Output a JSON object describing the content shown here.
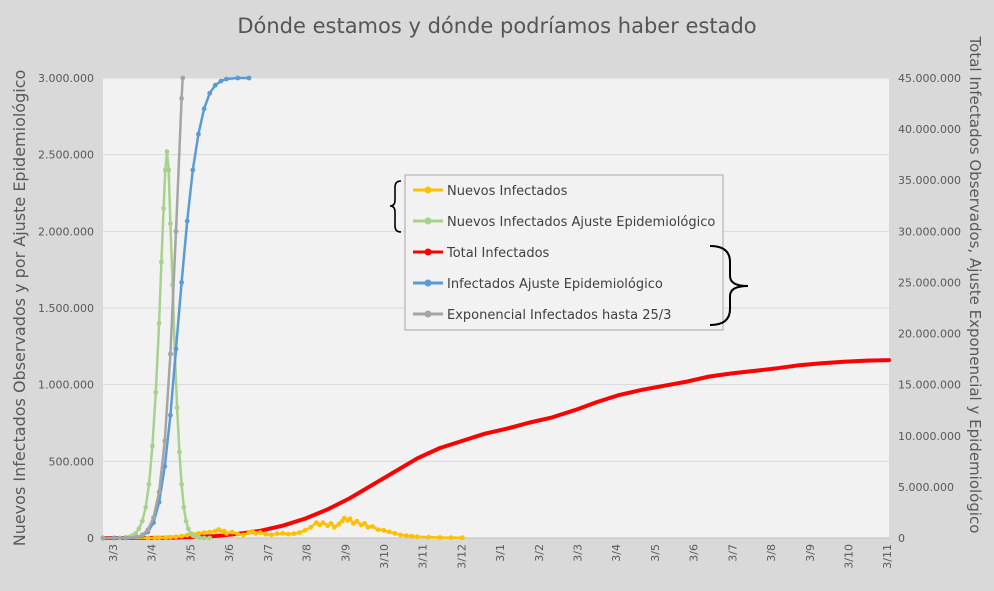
{
  "chart_data": {
    "type": "line",
    "title": "Dónde estamos y dónde podríamos haber estado",
    "ylabel_left": "Nuevos Infectados Observados y por Ajuste Epidemiológico",
    "ylabel_right": "Total Infectados Observados, Ajuste Exponencial y Epidemiológico",
    "x_tick_labels": [
      "3/3",
      "3/4",
      "3/5",
      "3/6",
      "3/7",
      "3/8",
      "3/9",
      "3/10",
      "3/11",
      "3/12",
      "3/1",
      "3/2",
      "3/3",
      "3/4",
      "3/5",
      "3/6",
      "3/7",
      "3/8",
      "3/9",
      "3/10",
      "3/11"
    ],
    "y_left": {
      "min": 0,
      "max": 3000000,
      "ticks": [
        0,
        500000,
        1000000,
        1500000,
        2000000,
        2500000,
        3000000
      ],
      "tick_labels": [
        "0",
        "500.000",
        "1.000.000",
        "1.500.000",
        "2.000.000",
        "2.500.000",
        "3.000.000"
      ]
    },
    "y_right": {
      "min": 0,
      "max": 45000000,
      "ticks": [
        0,
        5000000,
        10000000,
        15000000,
        20000000,
        25000000,
        30000000,
        35000000,
        40000000,
        45000000
      ],
      "tick_labels": [
        "0",
        "5.000.000",
        "10.000.000",
        "15.000.000",
        "20.000.000",
        "25.000.000",
        "30.000.000",
        "35.000.000",
        "40.000.000",
        "45.000.000"
      ]
    },
    "grid": "horizontal",
    "legend_position": "center",
    "series": [
      {
        "name": "Nuevos Infectados",
        "axis": "left",
        "color": "#ffc000",
        "points": [
          [
            0,
            0
          ],
          [
            2,
            0
          ],
          [
            4,
            300
          ],
          [
            4.6,
            800
          ],
          [
            5,
            2000
          ],
          [
            5.6,
            3000
          ],
          [
            6,
            5000
          ],
          [
            6.5,
            8000
          ],
          [
            7,
            12000
          ],
          [
            7.5,
            18000
          ],
          [
            8,
            25000
          ],
          [
            8.5,
            30000
          ],
          [
            9,
            35000
          ],
          [
            9.5,
            38000
          ],
          [
            10,
            45000
          ],
          [
            10.3,
            55000
          ],
          [
            10.6,
            40000
          ],
          [
            10.8,
            45000
          ],
          [
            11,
            30000
          ],
          [
            11.5,
            38000
          ],
          [
            12,
            25000
          ],
          [
            12.5,
            20000
          ],
          [
            13,
            35000
          ],
          [
            13.3,
            42000
          ],
          [
            13.6,
            30000
          ],
          [
            14,
            35000
          ],
          [
            14.5,
            25000
          ],
          [
            15,
            20000
          ],
          [
            15.5,
            28000
          ],
          [
            16,
            30000
          ],
          [
            16.5,
            25000
          ],
          [
            17,
            28000
          ],
          [
            17.5,
            35000
          ],
          [
            18,
            50000
          ],
          [
            18.5,
            70000
          ],
          [
            19,
            100000
          ],
          [
            19.3,
            85000
          ],
          [
            19.6,
            100000
          ],
          [
            20,
            80000
          ],
          [
            20.3,
            95000
          ],
          [
            20.6,
            70000
          ],
          [
            21,
            90000
          ],
          [
            21.3,
            110000
          ],
          [
            21.5,
            130000
          ],
          [
            21.8,
            115000
          ],
          [
            22,
            125000
          ],
          [
            22.3,
            95000
          ],
          [
            22.6,
            110000
          ],
          [
            23,
            85000
          ],
          [
            23.3,
            95000
          ],
          [
            23.6,
            70000
          ],
          [
            24,
            75000
          ],
          [
            24.5,
            55000
          ],
          [
            25,
            50000
          ],
          [
            25.5,
            40000
          ],
          [
            26,
            30000
          ],
          [
            26.5,
            20000
          ],
          [
            27,
            15000
          ],
          [
            27.5,
            12000
          ],
          [
            28,
            8000
          ],
          [
            29,
            5000
          ],
          [
            30,
            3000
          ],
          [
            31,
            2000
          ],
          [
            32,
            2000
          ]
        ]
      },
      {
        "name": "Nuevos Infectados Ajuste Epidemiológico",
        "axis": "left",
        "color": "#a9d18e",
        "points": [
          [
            0,
            0
          ],
          [
            1,
            0
          ],
          [
            1.5,
            500
          ],
          [
            2,
            2000
          ],
          [
            2.3,
            6000
          ],
          [
            2.6,
            15000
          ],
          [
            2.9,
            30000
          ],
          [
            3.2,
            60000
          ],
          [
            3.5,
            110000
          ],
          [
            3.8,
            200000
          ],
          [
            4.1,
            350000
          ],
          [
            4.4,
            600000
          ],
          [
            4.7,
            950000
          ],
          [
            5,
            1400000
          ],
          [
            5.2,
            1800000
          ],
          [
            5.4,
            2150000
          ],
          [
            5.55,
            2400000
          ],
          [
            5.7,
            2520000
          ],
          [
            5.85,
            2400000
          ],
          [
            6,
            2050000
          ],
          [
            6.2,
            1650000
          ],
          [
            6.4,
            1200000
          ],
          [
            6.6,
            850000
          ],
          [
            6.8,
            560000
          ],
          [
            7,
            350000
          ],
          [
            7.2,
            200000
          ],
          [
            7.4,
            110000
          ],
          [
            7.6,
            60000
          ],
          [
            7.8,
            30000
          ],
          [
            8,
            15000
          ],
          [
            8.3,
            6000
          ],
          [
            8.6,
            2000
          ],
          [
            9,
            500
          ],
          [
            9.5,
            0
          ]
        ]
      },
      {
        "name": "Total Infectados",
        "axis": "right",
        "color": "#ff0000",
        "points": [
          [
            0,
            0
          ],
          [
            4,
            0
          ],
          [
            6,
            30000
          ],
          [
            8,
            100000
          ],
          [
            10,
            200000
          ],
          [
            12,
            400000
          ],
          [
            14,
            700000
          ],
          [
            16,
            1200000
          ],
          [
            18,
            1900000
          ],
          [
            20,
            2800000
          ],
          [
            22,
            3900000
          ],
          [
            24,
            5200000
          ],
          [
            26,
            6500000
          ],
          [
            28,
            7800000
          ],
          [
            30,
            8800000
          ],
          [
            32,
            9500000
          ],
          [
            34,
            10200000
          ],
          [
            36,
            10700000
          ],
          [
            38,
            11300000
          ],
          [
            40,
            11800000
          ],
          [
            42,
            12500000
          ],
          [
            44,
            13300000
          ],
          [
            46,
            14000000
          ],
          [
            48,
            14500000
          ],
          [
            50,
            14900000
          ],
          [
            52,
            15300000
          ],
          [
            54,
            15800000
          ],
          [
            56,
            16100000
          ],
          [
            58,
            16350000
          ],
          [
            60,
            16600000
          ],
          [
            62,
            16900000
          ],
          [
            64,
            17100000
          ],
          [
            66,
            17250000
          ],
          [
            68,
            17350000
          ],
          [
            70,
            17400000
          ]
        ]
      },
      {
        "name": "Infectados Ajuste Epidemiológico",
        "axis": "right",
        "color": "#5b9bd5",
        "points": [
          [
            0,
            0
          ],
          [
            1,
            0
          ],
          [
            2,
            5000
          ],
          [
            3,
            60000
          ],
          [
            3.5,
            200000
          ],
          [
            4,
            600000
          ],
          [
            4.5,
            1500000
          ],
          [
            5,
            3500000
          ],
          [
            5.5,
            7000000
          ],
          [
            6,
            12000000
          ],
          [
            6.5,
            18500000
          ],
          [
            7,
            25000000
          ],
          [
            7.5,
            31000000
          ],
          [
            8,
            36000000
          ],
          [
            8.5,
            39500000
          ],
          [
            9,
            42000000
          ],
          [
            9.5,
            43500000
          ],
          [
            10,
            44300000
          ],
          [
            10.5,
            44700000
          ],
          [
            11,
            44900000
          ],
          [
            12,
            45000000
          ],
          [
            13,
            45000000
          ]
        ]
      },
      {
        "name": "Exponencial Infectados hasta 25/3",
        "axis": "right",
        "color": "#a5a5a5",
        "points": [
          [
            0,
            0
          ],
          [
            2,
            20000
          ],
          [
            3,
            100000
          ],
          [
            3.5,
            300000
          ],
          [
            4,
            800000
          ],
          [
            4.5,
            2000000
          ],
          [
            5,
            4500000
          ],
          [
            5.5,
            9500000
          ],
          [
            6,
            18000000
          ],
          [
            6.5,
            30000000
          ],
          [
            7,
            43000000
          ],
          [
            7.1,
            45000000
          ]
        ]
      }
    ]
  }
}
